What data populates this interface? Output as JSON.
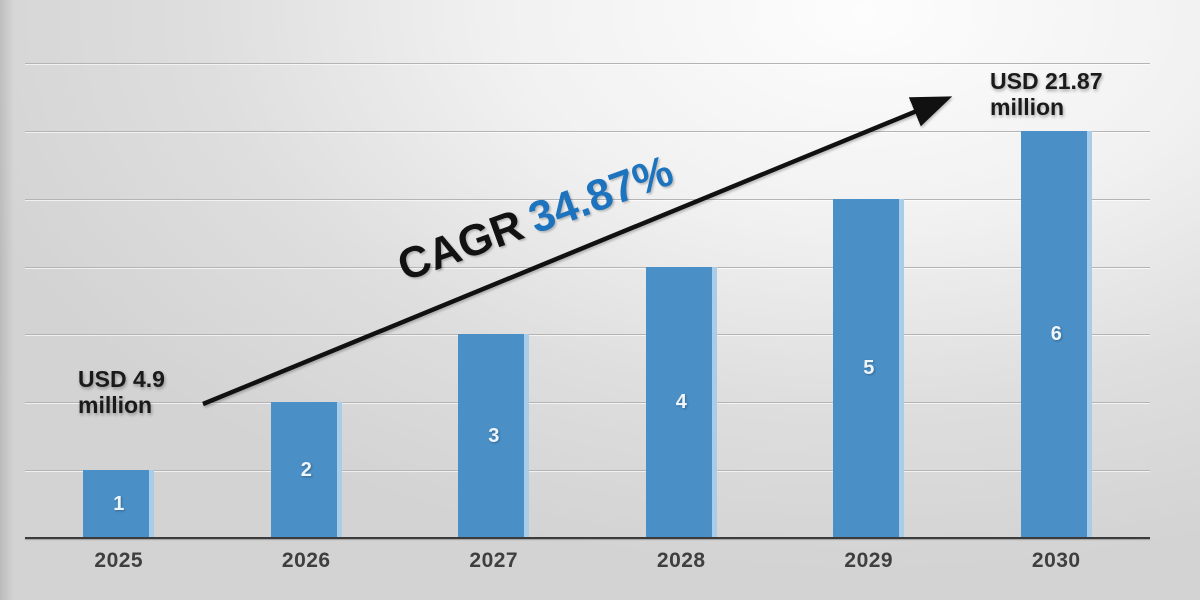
{
  "chart_data": {
    "type": "bar",
    "title": "",
    "xlabel": "",
    "ylabel": "",
    "categories": [
      "2025",
      "2026",
      "2027",
      "2028",
      "2029",
      "2030"
    ],
    "values": [
      1,
      2,
      3,
      4,
      5,
      6
    ],
    "bar_labels": [
      "1",
      "2",
      "3",
      "4",
      "5",
      "6"
    ],
    "ylim": [
      0,
      7
    ],
    "gridlines": 7,
    "grid": true,
    "legend_position": "none",
    "bar_color": "#4a8fc6",
    "bar_edge_highlight": "#a9cde9",
    "gridline_color": "#b4b4b4",
    "axis_color": "#3b3b3b",
    "tick_color": "#3f3f3f",
    "bar_value_label_color": "#eef5fb"
  },
  "annotations": {
    "start_value": {
      "line1": "USD 4.9",
      "line2": "million"
    },
    "end_value": {
      "line1": "USD 21.87",
      "line2": "million"
    },
    "cagr_prefix": "CAGR",
    "cagr_value": "34.87%",
    "cagr_value_color": "#1e73be",
    "arrow_color": "#111111"
  }
}
